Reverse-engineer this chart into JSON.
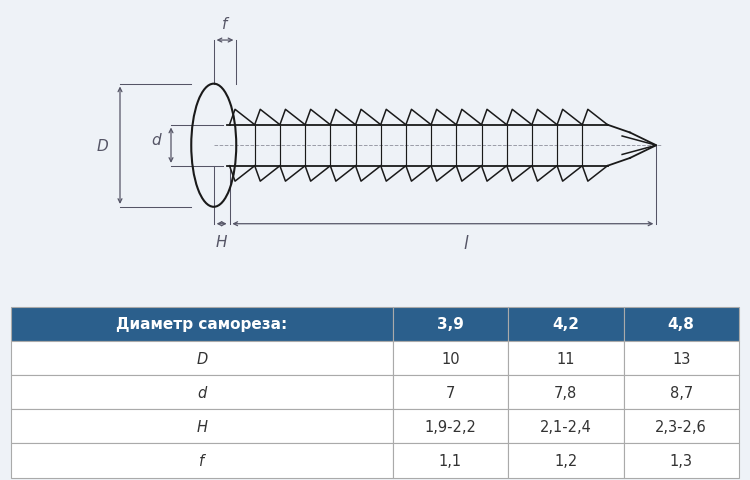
{
  "bg_color": "#eef2f7",
  "table_header_bg": "#2b5f8c",
  "table_header_text": "#ffffff",
  "table_row_bg": "#ffffff",
  "table_border": "#aaaaaa",
  "table_text": "#333333",
  "screw_color": "#1a1a1a",
  "dim_color": "#555566",
  "header_row": [
    "Диаметр самореза:",
    "3,9",
    "4,2",
    "4,8"
  ],
  "rows": [
    [
      "D",
      "10",
      "11",
      "13"
    ],
    [
      "d",
      "7",
      "7,8",
      "8,7"
    ],
    [
      "H",
      "1,9-2,2",
      "2,1-2,4",
      "2,3-2,6"
    ],
    [
      "f",
      "1,1",
      "1,2",
      "1,3"
    ]
  ]
}
